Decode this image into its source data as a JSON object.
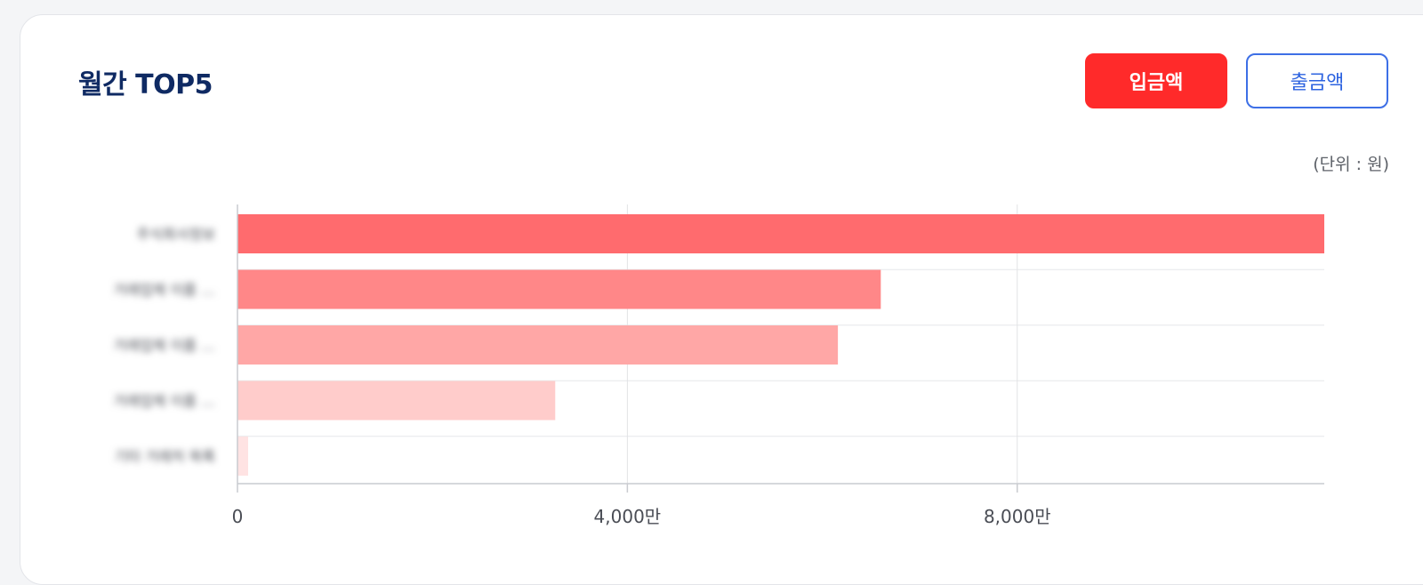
{
  "header": {
    "title": "월간 TOP5",
    "buttons": [
      {
        "label": "입금액",
        "active": true
      },
      {
        "label": "출금액",
        "active": false
      }
    ],
    "unit_note": "(단위 : 원)"
  },
  "colors": {
    "title": "#0f2a63",
    "active_button": "#ff2a2a",
    "inactive_button_text": "#2d63e0",
    "bar_shades": [
      "#ff6b6e",
      "#ff8788",
      "#ffa7a6",
      "#ffcccb",
      "#ffe3e3"
    ]
  },
  "chart_data": {
    "type": "bar",
    "orientation": "horizontal",
    "categories": [
      "주식회사정보",
      "거래업체 이름 …",
      "거래업체 이름 …",
      "거래업체 이름 …",
      "기타 거래처 목록"
    ],
    "values": [
      111500000,
      66000000,
      61600000,
      32600000,
      1000000
    ],
    "xlim": [
      0,
      111500000
    ],
    "ticks": [
      {
        "value": 0,
        "label": "0"
      },
      {
        "value": 40000000,
        "label": "4,000만"
      },
      {
        "value": 80000000,
        "label": "8,000만"
      }
    ],
    "grid": true,
    "xlabel": "",
    "ylabel": ""
  }
}
